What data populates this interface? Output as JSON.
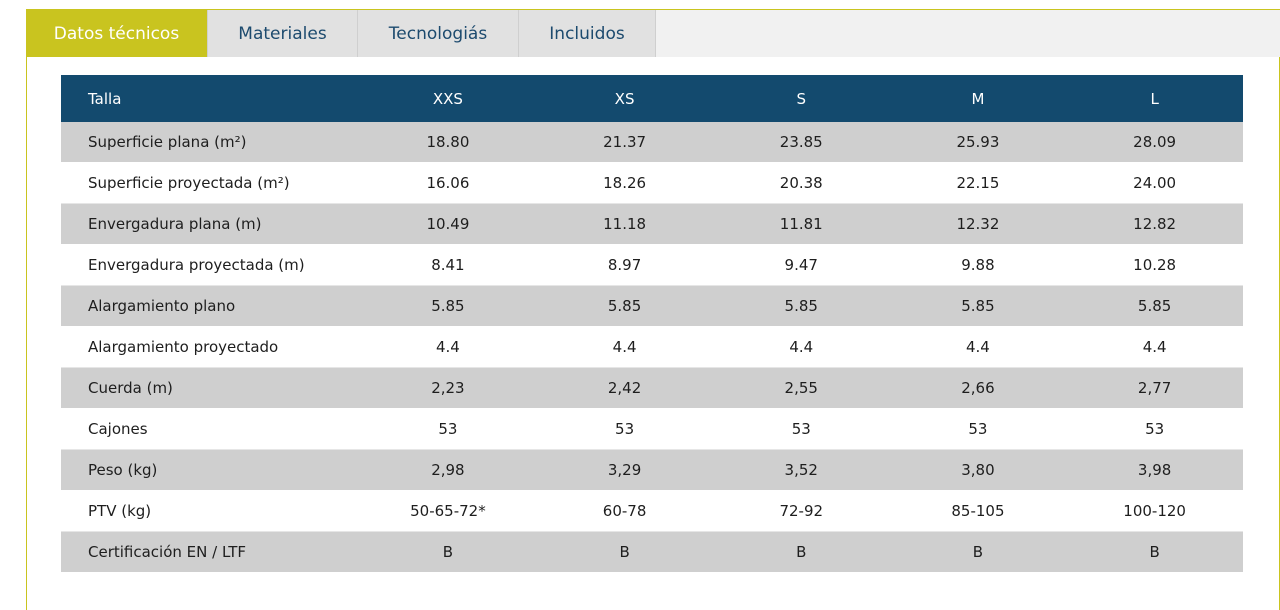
{
  "tabs": [
    {
      "label": "Datos técnicos",
      "active": true
    },
    {
      "label": "Materiales",
      "active": false
    },
    {
      "label": "Tecnologiás",
      "active": false
    },
    {
      "label": "Incluidos",
      "active": false
    }
  ],
  "table": {
    "header_label": "Talla",
    "sizes": [
      "XXS",
      "XS",
      "S",
      "M",
      "L"
    ],
    "rows": [
      {
        "label": "Superficie plana (m²)",
        "values": [
          "18.80",
          "21.37",
          "23.85",
          "25.93",
          "28.09"
        ]
      },
      {
        "label": "Superficie proyectada (m²)",
        "values": [
          "16.06",
          "18.26",
          "20.38",
          "22.15",
          "24.00"
        ]
      },
      {
        "label": "Envergadura plana (m)",
        "values": [
          "10.49",
          "11.18",
          "11.81",
          "12.32",
          "12.82"
        ]
      },
      {
        "label": "Envergadura proyectada (m)",
        "values": [
          "8.41",
          "8.97",
          "9.47",
          "9.88",
          "10.28"
        ]
      },
      {
        "label": "Alargamiento plano",
        "values": [
          "5.85",
          "5.85",
          "5.85",
          "5.85",
          "5.85"
        ]
      },
      {
        "label": "Alargamiento proyectado",
        "values": [
          "4.4",
          "4.4",
          "4.4",
          "4.4",
          "4.4"
        ]
      },
      {
        "label": "Cuerda (m)",
        "values": [
          "2,23",
          "2,42",
          "2,55",
          "2,66",
          "2,77"
        ]
      },
      {
        "label": "Cajones",
        "values": [
          "53",
          "53",
          "53",
          "53",
          "53"
        ]
      },
      {
        "label": "Peso (kg)",
        "values": [
          "2,98",
          "3,29",
          "3,52",
          "3,80",
          "3,98"
        ]
      },
      {
        "label": "PTV (kg)",
        "values": [
          "50-65-72*",
          "60-78",
          "72-92",
          "85-105",
          "100-120"
        ]
      },
      {
        "label": "Certificación EN / LTF",
        "values": [
          "B",
          "B",
          "B",
          "B",
          "B"
        ]
      }
    ]
  },
  "colors": {
    "accent": "#c9c41f",
    "header": "#134a6e",
    "row_alt": "#cfcfcf",
    "tab_inactive": "#e1e1e1"
  }
}
